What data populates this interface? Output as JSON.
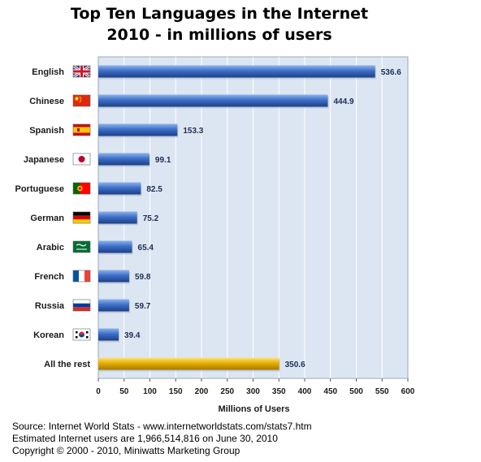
{
  "title_line1": "Top Ten Languages in the Internet",
  "title_line2": "2010 - in millions of users",
  "footer": {
    "line1": "Source: Internet World Stats - www.internetworldstats.com/stats7.htm",
    "line2": "Estimated Internet users are 1,966,514,816 on June 30, 2010",
    "line3": "Copyright © 2000 - 2010, Miniwatts Marketing Group"
  },
  "colors": {
    "bar": "#3a6cc4",
    "bar_highlight": "#e8b100",
    "plot_bg": "#dce6f2",
    "grid": "#ffffff"
  },
  "chart_data": {
    "type": "bar",
    "orientation": "horizontal",
    "title": "Top Ten Languages in the Internet",
    "subtitle": "2010 - in millions of users",
    "xlabel": "Millions of Users",
    "ylabel": "",
    "xlim": [
      0,
      600
    ],
    "xticks": [
      0,
      50,
      100,
      150,
      200,
      250,
      300,
      350,
      400,
      450,
      500,
      550,
      600
    ],
    "grid": true,
    "categories": [
      "English",
      "Chinese",
      "Spanish",
      "Japanese",
      "Portuguese",
      "German",
      "Arabic",
      "French",
      "Russia",
      "Korean",
      "All the rest"
    ],
    "flags": [
      "uk-flag-icon",
      "china-flag-icon",
      "spain-flag-icon",
      "japan-flag-icon",
      "portugal-flag-icon",
      "germany-flag-icon",
      "saudi-arabia-flag-icon",
      "france-flag-icon",
      "russia-flag-icon",
      "korea-flag-icon",
      ""
    ],
    "values": [
      536.6,
      444.9,
      153.3,
      99.1,
      82.5,
      75.2,
      65.4,
      59.8,
      59.7,
      39.4,
      350.6
    ],
    "value_labels": [
      "536.6",
      "444.9",
      "153.3",
      "99.1",
      "82.5",
      "75.2",
      "65.4",
      "59.8",
      "59.7",
      "39.4",
      "350.6"
    ]
  }
}
